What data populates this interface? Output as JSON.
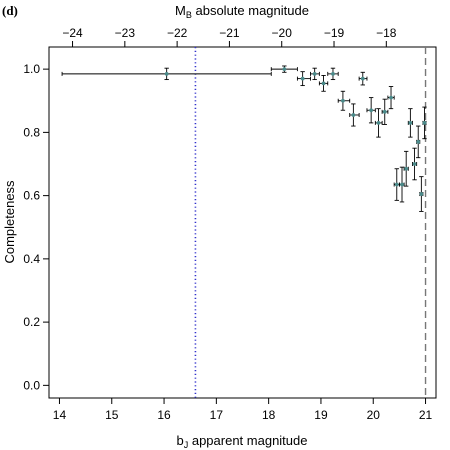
{
  "chart_data": {
    "type": "scatter",
    "panel_label": "(d)",
    "xlabel_main": "b",
    "xlabel_sub": "J",
    "xlabel_rest": " apparent magnitude",
    "xlabel_top_main": "M",
    "xlabel_top_sub": "B",
    "xlabel_top_rest": " absolute magnitude",
    "ylabel": "Completeness",
    "xlim": [
      13.8,
      21.2
    ],
    "ylim": [
      -0.04,
      1.07
    ],
    "x_ticks": [
      "14",
      "15",
      "16",
      "17",
      "18",
      "19",
      "20",
      "21"
    ],
    "x_tick_values": [
      14,
      15,
      16,
      17,
      18,
      19,
      20,
      21
    ],
    "y_ticks": [
      "0.0",
      "0.2",
      "0.4",
      "0.6",
      "0.8",
      "1.0"
    ],
    "y_tick_values": [
      0.0,
      0.2,
      0.4,
      0.6,
      0.8,
      1.0
    ],
    "top_ticks": [
      "−24",
      "−23",
      "−22",
      "−21",
      "−20",
      "−19",
      "−18"
    ],
    "top_tick_values": [
      -24,
      -23,
      -22,
      -21,
      -20,
      -19,
      -18
    ],
    "top_axis_offset": 38.25,
    "vlines": [
      {
        "x": 16.6,
        "style": "dotted",
        "color": "#3333cc"
      },
      {
        "x": 21.0,
        "style": "dashed",
        "color": "#777777"
      }
    ],
    "colors": {
      "points": "#4a8a8a",
      "errorbars": "#000000"
    },
    "points": [
      {
        "x": 16.05,
        "xlo": 14.05,
        "xhi": 18.05,
        "y": 0.985,
        "yerr": 0.018
      },
      {
        "x": 18.3,
        "xlo": 18.05,
        "xhi": 18.55,
        "y": 1.0,
        "yerr": 0.01
      },
      {
        "x": 18.65,
        "xlo": 18.55,
        "xhi": 18.8,
        "y": 0.97,
        "yerr": 0.022
      },
      {
        "x": 18.88,
        "xlo": 18.8,
        "xhi": 18.97,
        "y": 0.985,
        "yerr": 0.018
      },
      {
        "x": 19.05,
        "xlo": 18.97,
        "xhi": 19.13,
        "y": 0.955,
        "yerr": 0.025
      },
      {
        "x": 19.23,
        "xlo": 19.13,
        "xhi": 19.33,
        "y": 0.985,
        "yerr": 0.018
      },
      {
        "x": 19.42,
        "xlo": 19.33,
        "xhi": 19.55,
        "y": 0.9,
        "yerr": 0.03
      },
      {
        "x": 19.62,
        "xlo": 19.55,
        "xhi": 19.73,
        "y": 0.855,
        "yerr": 0.035
      },
      {
        "x": 19.8,
        "xlo": 19.73,
        "xhi": 19.88,
        "y": 0.97,
        "yerr": 0.02
      },
      {
        "x": 19.96,
        "xlo": 19.88,
        "xhi": 20.04,
        "y": 0.87,
        "yerr": 0.04
      },
      {
        "x": 20.1,
        "xlo": 20.04,
        "xhi": 20.17,
        "y": 0.83,
        "yerr": 0.045
      },
      {
        "x": 20.22,
        "xlo": 20.17,
        "xhi": 20.28,
        "y": 0.865,
        "yerr": 0.04
      },
      {
        "x": 20.34,
        "xlo": 20.28,
        "xhi": 20.4,
        "y": 0.91,
        "yerr": 0.035
      },
      {
        "x": 20.45,
        "xlo": 20.4,
        "xhi": 20.5,
        "y": 0.635,
        "yerr": 0.05
      },
      {
        "x": 20.55,
        "xlo": 20.5,
        "xhi": 20.59,
        "y": 0.635,
        "yerr": 0.055
      },
      {
        "x": 20.63,
        "xlo": 20.59,
        "xhi": 20.67,
        "y": 0.685,
        "yerr": 0.055
      },
      {
        "x": 20.71,
        "xlo": 20.67,
        "xhi": 20.75,
        "y": 0.83,
        "yerr": 0.045
      },
      {
        "x": 20.79,
        "xlo": 20.75,
        "xhi": 20.83,
        "y": 0.7,
        "yerr": 0.05
      },
      {
        "x": 20.86,
        "xlo": 20.83,
        "xhi": 20.89,
        "y": 0.77,
        "yerr": 0.05
      },
      {
        "x": 20.92,
        "xlo": 20.89,
        "xhi": 20.95,
        "y": 0.605,
        "yerr": 0.055
      },
      {
        "x": 20.98,
        "xlo": 20.95,
        "xhi": 21.01,
        "y": 0.83,
        "yerr": 0.05
      }
    ]
  }
}
